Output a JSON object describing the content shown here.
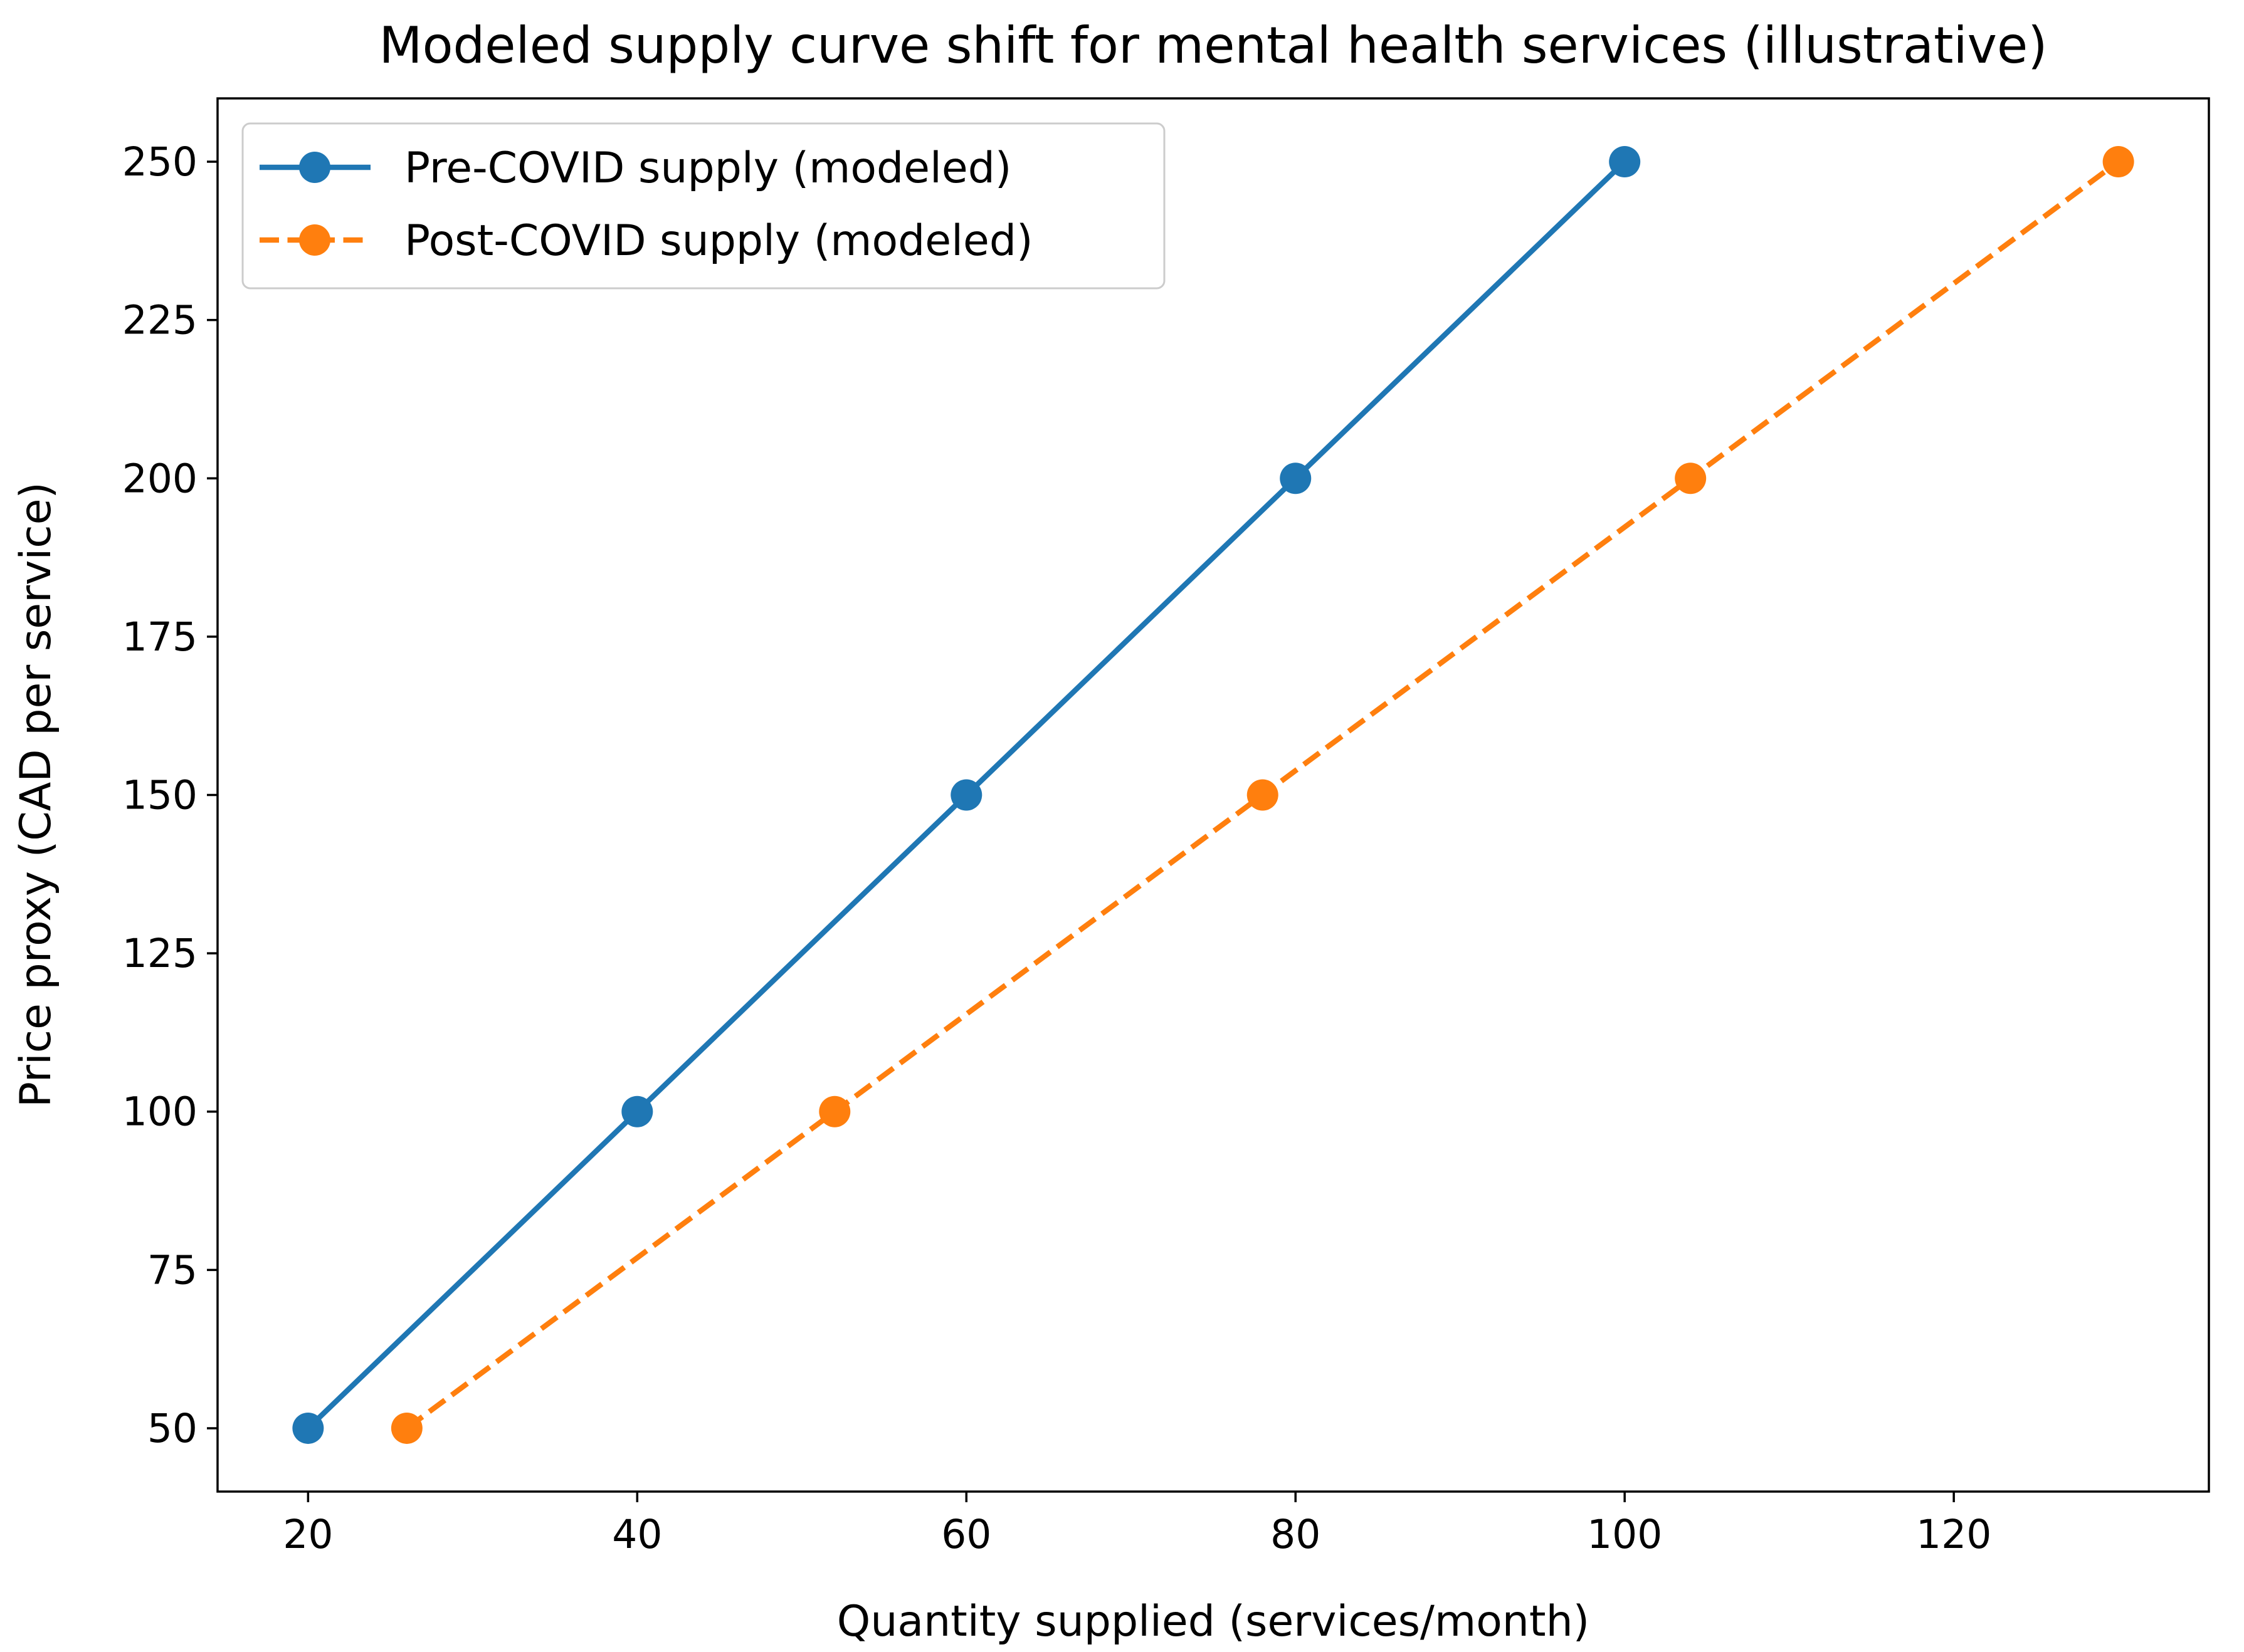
{
  "chart_data": {
    "type": "line",
    "title": "Modeled supply curve shift for mental health services (illustrative)",
    "xlabel": "Quantity supplied (services/month)",
    "ylabel": "Price proxy (CAD per service)",
    "xlim": [
      14.5,
      135.5
    ],
    "ylim": [
      40,
      260
    ],
    "xticks": [
      20,
      40,
      60,
      80,
      100,
      120
    ],
    "yticks": [
      50,
      75,
      100,
      125,
      150,
      175,
      200,
      225,
      250
    ],
    "grid": false,
    "legend_position": "top-left",
    "series": [
      {
        "name": "Pre-COVID supply (modeled)",
        "color": "#1f77b4",
        "line_style": "solid",
        "marker": "circle",
        "points": [
          {
            "x": 20,
            "y": 50
          },
          {
            "x": 40,
            "y": 100
          },
          {
            "x": 60,
            "y": 150
          },
          {
            "x": 80,
            "y": 200
          },
          {
            "x": 100,
            "y": 250
          }
        ]
      },
      {
        "name": "Post-COVID supply (modeled)",
        "color": "#ff7f0e",
        "line_style": "dashed",
        "marker": "circle",
        "points": [
          {
            "x": 26,
            "y": 50
          },
          {
            "x": 52,
            "y": 100
          },
          {
            "x": 78,
            "y": 150
          },
          {
            "x": 104,
            "y": 200
          },
          {
            "x": 130,
            "y": 250
          }
        ]
      }
    ]
  }
}
